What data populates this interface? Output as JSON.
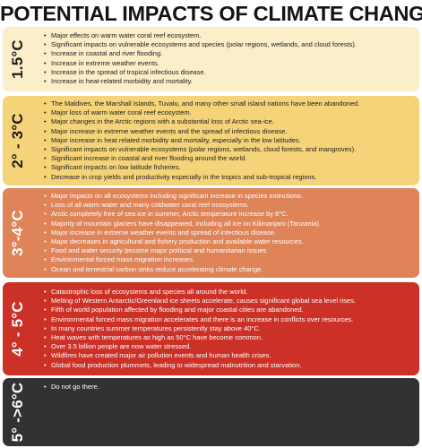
{
  "title": "POTENTIAL IMPACTS OF CLIMATE CHANGE",
  "bands": [
    {
      "label": "1.5°C",
      "color": "#fbeec9",
      "items": [
        "Major effects on warm water coral reef ecosystem.",
        "Significant impacts on vulnerable ecosystems and species (polar regions, wetlands, and cloud forests).",
        "Increase in coastal and river flooding.",
        "Increase in extreme weather events.",
        "Increase in the spread of tropical infectious disease.",
        "Increase in heat-related morbidity and mortality."
      ]
    },
    {
      "label": "2° - 3°C",
      "color": "#f5d479",
      "items": [
        "The Maldives, the Marshall Islands, Tuvalu, and many other small island nations have been abandoned.",
        "Major loss of warm water coral reef ecosystem.",
        "Major changes in the Arctic regions with a substantial loss of Arctic sea-ice.",
        "Major increase in extreme weather events and the spread of infectious disease.",
        "Major increase in heat related morbidity and mortality, especially in the low latitudes.",
        "Significant impacts on vulnerable ecosystems (polar regions, wetlands, cloud forests, and mangroves).",
        "Significant increase in coastal and river flooding around the world.",
        "Significant impacts on low latitude fisheries.",
        "Decrease in crop yields and productivity especially in the tropics and sub-tropical regions."
      ]
    },
    {
      "label": "3°-4°C",
      "color": "#de8458",
      "items": [
        "Major impacts on all ecosystems including significant increase in species extinctions.",
        "Loss of all warm water and many coldwater coral reef ecosystems.",
        "Arctic completely free of sea ice in summer, Arctic temperature increase by 8°C.",
        "Majority of mountain glaciers have disappeared, including all ice on Kilimanjaro (Tanzania).",
        "Major increase in extreme weather events and spread of infectious disease.",
        "Major decreases in agricultural and fishery production and available water resources.",
        "Food and water security become major political and humanitarian issues.",
        "Environmental forced mass migration increases.",
        "Ocean and terrestrial carbon sinks reduce accelerating climate change."
      ]
    },
    {
      "label": "4° - 5°C",
      "color": "#cc3127",
      "items": [
        "Catastrophic loss of ecosystems and species all around the world.",
        "Melting of Western Antarctic/Greenland ice sheets accelerate, causes significant global sea level rises.",
        "Fifth of world population affected by flooding and major coastal cities are abandoned.",
        "Environmental forced mass migration accelerates and there is an increase in conflicts over resources.",
        "In many countries summer temperatures persistently stay above 40°C.",
        "Heat waves with temperatures as high as 50°C have become common.",
        "Over 3.5 billion people are now water stressed.",
        "Wildfires have created major air pollution events and human health crises.",
        "Global food production plummets, leading to widespread malnutrition and starvation."
      ]
    },
    {
      "label": "5° ->6°C",
      "color": "#323232",
      "items": [
        "Do not go there."
      ]
    }
  ]
}
